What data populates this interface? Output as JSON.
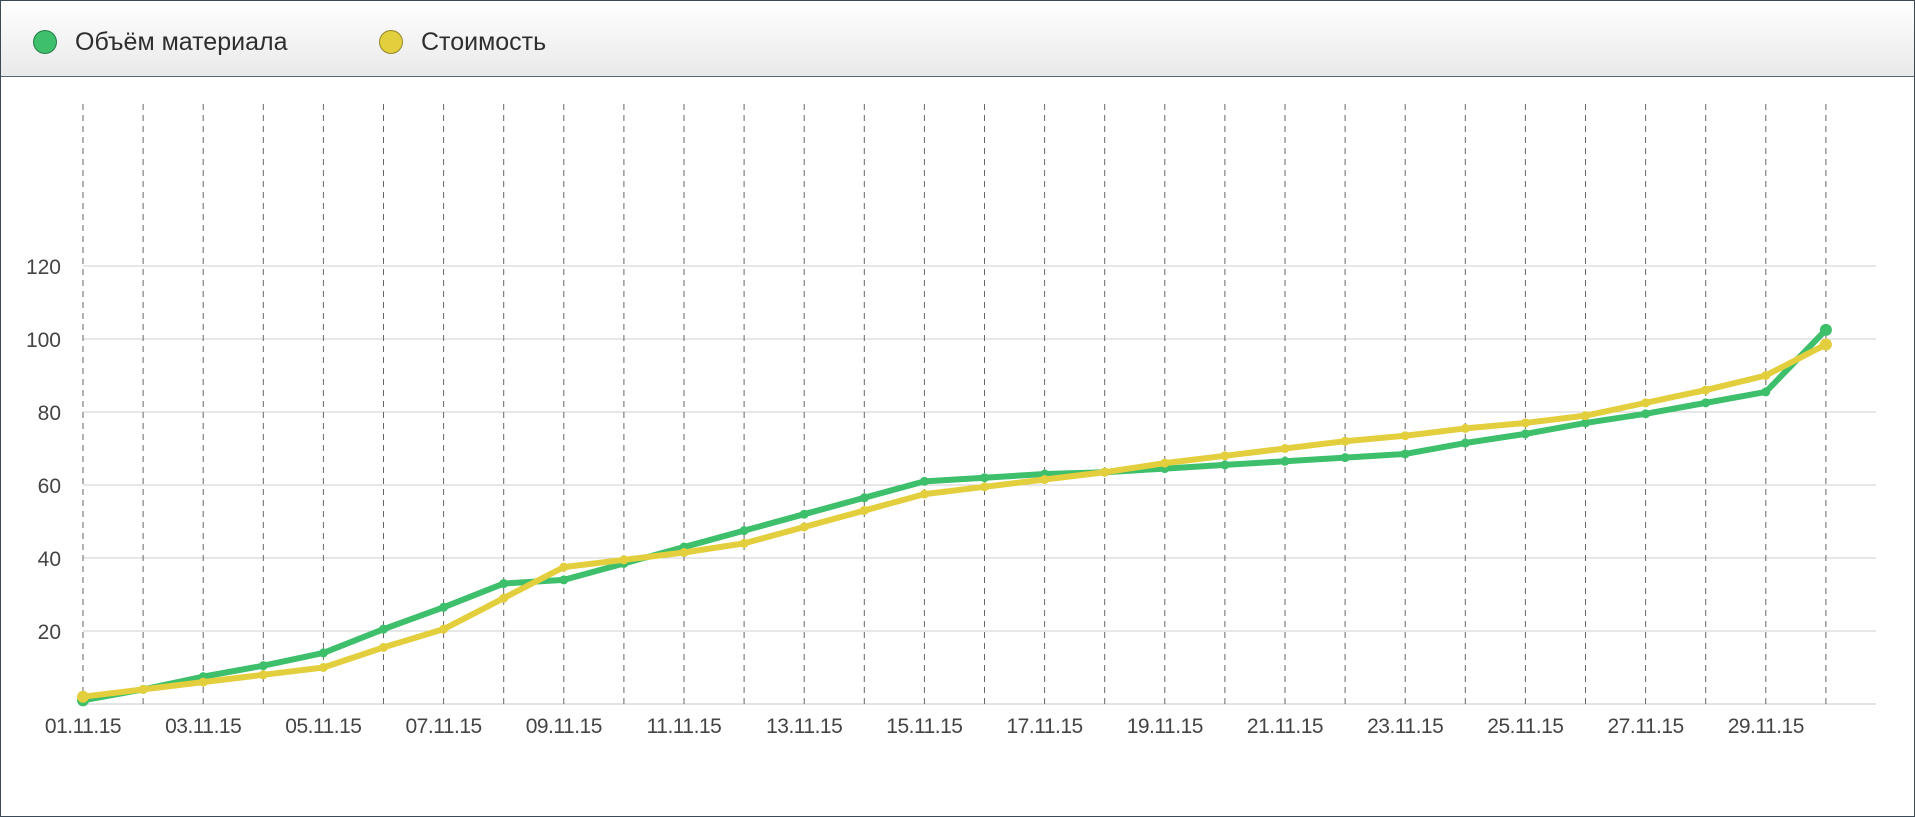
{
  "chart_data": {
    "type": "line",
    "title": "",
    "xlabel": "",
    "ylabel": "",
    "ylim": [
      0,
      120
    ],
    "yticks": [
      20,
      40,
      60,
      80,
      100,
      120
    ],
    "grid": true,
    "legend_position": "top-left",
    "x": [
      "01.11.15",
      "02.11.15",
      "03.11.15",
      "04.11.15",
      "05.11.15",
      "06.11.15",
      "07.11.15",
      "08.11.15",
      "09.11.15",
      "10.11.15",
      "11.11.15",
      "12.11.15",
      "13.11.15",
      "14.11.15",
      "15.11.15",
      "16.11.15",
      "17.11.15",
      "18.11.15",
      "19.11.15",
      "20.11.15",
      "21.11.15",
      "22.11.15",
      "23.11.15",
      "24.11.15",
      "25.11.15",
      "26.11.15",
      "27.11.15",
      "28.11.15",
      "29.11.15",
      "30.11.15"
    ],
    "x_tick_labels": [
      "01.11.15",
      "",
      "03.11.15",
      "",
      "05.11.15",
      "",
      "07.11.15",
      "",
      "09.11.15",
      "",
      "11.11.15",
      "",
      "13.11.15",
      "",
      "15.11.15",
      "",
      "17.11.15",
      "",
      "19.11.15",
      "",
      "21.11.15",
      "",
      "23.11.15",
      "",
      "25.11.15",
      "",
      "27.11.15",
      "",
      "29.11.15",
      ""
    ],
    "series": [
      {
        "name": "Объём материала",
        "color": "#3dbf6b",
        "values": [
          1,
          4,
          7.5,
          10.5,
          14,
          20.5,
          26.5,
          33,
          34,
          38.5,
          43,
          47.5,
          52,
          56.5,
          61,
          62,
          63,
          63.5,
          64.5,
          65.5,
          66.5,
          67.5,
          68.5,
          71.5,
          74,
          77,
          79.5,
          82.5,
          85.5,
          102.5
        ]
      },
      {
        "name": "Стоимость",
        "color": "#e3cf3d",
        "values": [
          2,
          4,
          6,
          8,
          10,
          15.5,
          20.5,
          29,
          37.5,
          39.5,
          41.5,
          44,
          48.5,
          53,
          57.5,
          59.5,
          61.5,
          63.5,
          66,
          68,
          70,
          72,
          73.5,
          75.5,
          77,
          79,
          82.5,
          86,
          90,
          98.5
        ]
      }
    ]
  }
}
